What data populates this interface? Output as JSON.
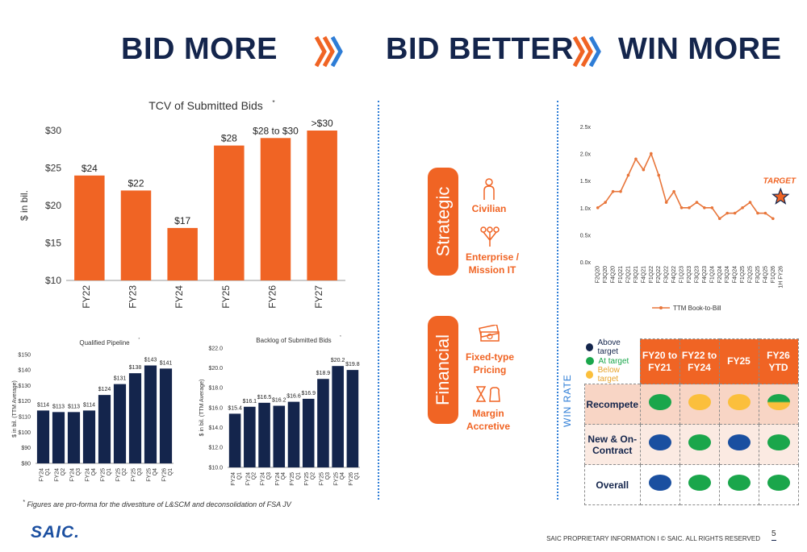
{
  "header": {
    "bid_more": "BID MORE",
    "bid_better": "BID BETTER",
    "win_more": "WIN MORE"
  },
  "colors": {
    "orange": "#f06424",
    "navy": "#14254c",
    "bar_navy": "#14254c",
    "chevron_orange": "#f06424",
    "chevron_blue": "#2e7dd6",
    "green": "#1aa64b",
    "yellow": "#fbbf3c",
    "blue_dot": "#1a4fa0"
  },
  "tcv": {
    "title": "TCV of Submitted Bids",
    "title_note": "*",
    "ylabel": "$ in bil."
  },
  "pipeline": {
    "title": "Qualified Pipeline",
    "title_note": "*",
    "ylabel": "$ in bil. (TTM Average)"
  },
  "backlog": {
    "title": "Backlog of Submitted Bids",
    "title_note": "*",
    "ylabel": "$ in bil. (TTM Average)"
  },
  "bookbill": {
    "legend": "TTM Book-to-Bill",
    "target_label": "TARGET"
  },
  "strategic": {
    "label": "Strategic",
    "items": [
      {
        "icon": "person-icon",
        "text": "Civilian"
      },
      {
        "icon": "network-icon",
        "text": "Enterprise / Mission IT"
      }
    ]
  },
  "financial": {
    "label": "Financial",
    "items": [
      {
        "icon": "money-stack-icon",
        "text": "Fixed-type Pricing"
      },
      {
        "icon": "hourglass-money-icon",
        "text": "Margin Accretive"
      }
    ]
  },
  "win_rate": {
    "axis_label": "WIN RATE",
    "legend": [
      {
        "label": "Above target",
        "color": "#14254c"
      },
      {
        "label": "At target",
        "color": "#1aa64b"
      },
      {
        "label": "Below target",
        "color": "#fbbf3c"
      }
    ],
    "columns": [
      "FY20 to FY21",
      "FY22 to FY24",
      "FY25",
      "FY26 YTD"
    ],
    "rows": [
      {
        "label": "Recompete",
        "values": [
          "at",
          "below",
          "below",
          "mixed"
        ]
      },
      {
        "label": "New & On-Contract",
        "values": [
          "above",
          "at",
          "above",
          "at"
        ]
      },
      {
        "label": "Overall",
        "values": [
          "above",
          "at",
          "at",
          "at"
        ]
      }
    ]
  },
  "footnote": "Figures are pro-forma for the divestiture of L&SCM and deconsolidation of FSA JV",
  "footnote_mark": "*",
  "footer": "SAIC PROPRIETARY INFORMATION  I  © SAIC. ALL RIGHTS RESERVED",
  "page_number": "5",
  "logo": "SAIC.",
  "chart_data": [
    {
      "type": "bar",
      "title": "TCV of Submitted Bids",
      "ylabel": "$ in bil.",
      "categories": [
        "FY22",
        "FY23",
        "FY24",
        "FY25",
        "FY26",
        "FY27"
      ],
      "values": [
        24,
        22,
        17,
        28,
        29,
        30
      ],
      "data_labels": [
        "$24",
        "$22",
        "$17",
        "$28",
        "$28 to $30",
        ">$30"
      ],
      "yticks": [
        "$10",
        "$15",
        "$20",
        "$25",
        "$30"
      ],
      "ylim": [
        10,
        30
      ]
    },
    {
      "type": "bar",
      "title": "Qualified Pipeline",
      "ylabel": "$ in bil. (TTM Average)",
      "categories": [
        "FY24 Q1",
        "FY24 Q2",
        "FY24 Q3",
        "FY24 Q4",
        "FY25 Q1",
        "FY25 Q2",
        "FY25 Q3",
        "FY25 Q4",
        "FY26 Q1"
      ],
      "values": [
        114,
        113,
        113,
        114,
        124,
        131,
        138,
        143,
        141
      ],
      "data_labels": [
        "$114",
        "$113",
        "$113",
        "$114",
        "$124",
        "$131",
        "$138",
        "$143",
        "$141"
      ],
      "yticks": [
        "$80",
        "$90",
        "$100",
        "$110",
        "$120",
        "$130",
        "$140",
        "$150"
      ],
      "ylim": [
        80,
        150
      ]
    },
    {
      "type": "bar",
      "title": "Backlog of Submitted Bids",
      "ylabel": "$ in bil. (TTM Average)",
      "categories": [
        "FY24 Q1",
        "FY24 Q2",
        "FY24 Q3",
        "FY24 Q4",
        "FY25 Q1",
        "FY25 Q2",
        "FY25 Q3",
        "FY25 Q4",
        "FY26 Q1"
      ],
      "values": [
        15.4,
        16.1,
        16.5,
        16.2,
        16.6,
        16.9,
        18.9,
        20.2,
        19.8
      ],
      "data_labels": [
        "$15.4",
        "$16.1",
        "$16.5",
        "$16.2",
        "$16.6",
        "$16.9",
        "$18.9",
        "$20.2",
        "$19.8"
      ],
      "yticks": [
        "$10.0",
        "$12.0",
        "$14.0",
        "$16.0",
        "$18.0",
        "$20.0",
        "$22.0"
      ],
      "ylim": [
        10,
        22
      ]
    },
    {
      "type": "line",
      "series": [
        {
          "name": "TTM Book-to-Bill",
          "values": [
            1.0,
            1.1,
            1.3,
            1.3,
            1.6,
            1.9,
            1.7,
            2.0,
            1.6,
            1.1,
            1.3,
            1.0,
            1.0,
            1.1,
            1.0,
            1.0,
            0.8,
            0.9,
            0.9,
            1.0,
            1.1,
            0.9,
            0.9,
            0.8
          ]
        }
      ],
      "categories": [
        "F2Q20",
        "F3Q20",
        "F4Q20",
        "F1Q21",
        "F2Q21",
        "F3Q21",
        "F4Q21",
        "F1Q22",
        "F2Q22",
        "F3Q22",
        "F4Q22",
        "F1Q23",
        "F2Q23",
        "F3Q23",
        "F4Q23",
        "F1Q24",
        "F2Q24",
        "F3Q24",
        "F4Q24",
        "F1Q25",
        "F2Q25",
        "F3Q25",
        "F4Q25",
        "F1Q26"
      ],
      "extra_category": "1H FY26",
      "target_value": 1.2,
      "yticks": [
        "0.0x",
        "0.5x",
        "1.0x",
        "1.5x",
        "2.0x",
        "2.5x"
      ],
      "ylim": [
        0,
        2.5
      ]
    }
  ]
}
